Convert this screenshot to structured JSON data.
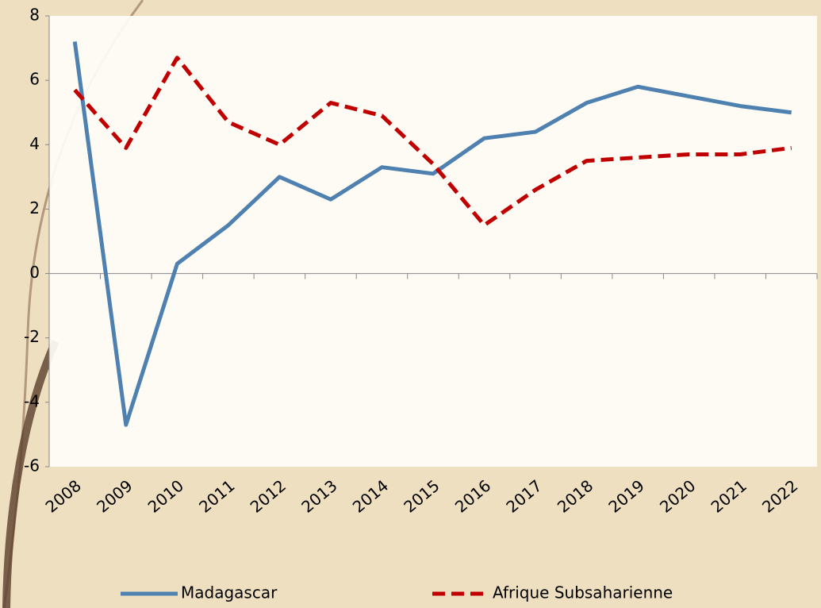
{
  "chart_data": {
    "type": "line",
    "categories": [
      "2008",
      "2009",
      "2010",
      "2011",
      "2012",
      "2013",
      "2014",
      "2015",
      "2016",
      "2017",
      "2018",
      "2019",
      "2020",
      "2021",
      "2022"
    ],
    "series": [
      {
        "name": "Madagascar",
        "color": "#4f81b0",
        "dash": false,
        "values": [
          7.2,
          -4.7,
          0.3,
          1.5,
          3.0,
          2.3,
          3.3,
          3.1,
          4.2,
          4.4,
          5.3,
          5.8,
          5.5,
          5.2,
          5.0
        ]
      },
      {
        "name": "Afrique Subsaharienne",
        "color": "#c00000",
        "dash": true,
        "values": [
          5.7,
          3.9,
          6.7,
          4.7,
          4.0,
          5.3,
          4.9,
          3.4,
          1.5,
          2.6,
          3.5,
          3.6,
          3.7,
          3.7,
          3.9
        ]
      }
    ],
    "ylim": [
      -6,
      8
    ],
    "yticks": [
      -6,
      -4,
      -2,
      0,
      2,
      4,
      6,
      8
    ],
    "legend": "bottom"
  }
}
